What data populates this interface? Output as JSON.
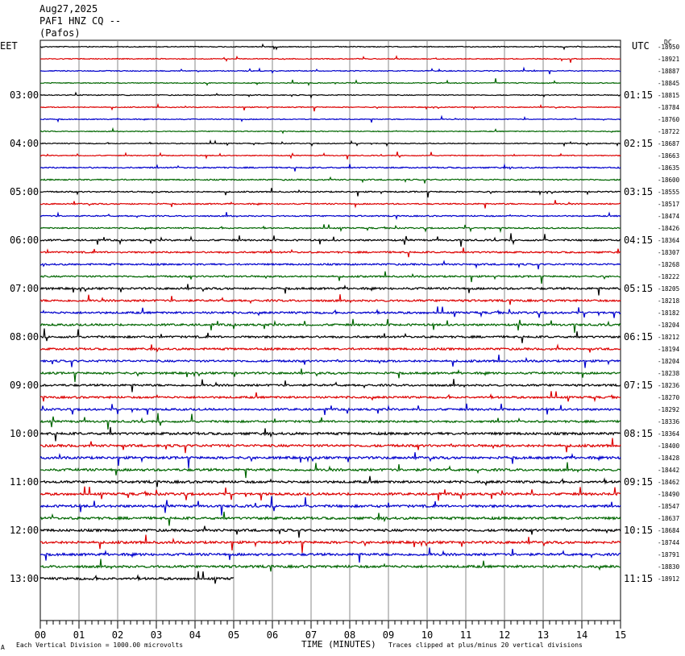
{
  "header": {
    "date": "Aug27,2025",
    "station": "PAF1 HNZ CQ --",
    "location": "(Pafos)"
  },
  "left_timezone": "EET",
  "right_timezone": "UTC",
  "top_right_tag": "DC",
  "footer": {
    "vertical_division": "Each Vertical Division = 1000.00 microvolts",
    "xlabel": "TIME (MINUTES)",
    "clip_note": "Traces clipped at plus/minus 20 vertical divisions",
    "corner_mark": "A"
  },
  "colors": {
    "trace_cycle": [
      "#000000",
      "#dd0000",
      "#0000cc",
      "#006600"
    ],
    "grid": "#888888"
  },
  "chart_data": {
    "type": "line",
    "title": "",
    "xlabel": "TIME (MINUTES)",
    "ylabel": "",
    "xlim": [
      0,
      15
    ],
    "x_ticks": [
      "00",
      "01",
      "02",
      "03",
      "04",
      "05",
      "06",
      "07",
      "08",
      "09",
      "10",
      "11",
      "12",
      "13",
      "14",
      "15"
    ],
    "left_hour_labels": [
      "03:00",
      "04:00",
      "05:00",
      "06:00",
      "07:00",
      "08:00",
      "09:00",
      "10:00",
      "11:00",
      "12:00",
      "13:00"
    ],
    "right_hour_labels": [
      "01:15",
      "02:15",
      "03:15",
      "04:15",
      "05:15",
      "06:15",
      "07:15",
      "08:15",
      "09:15",
      "10:15",
      "11:15"
    ],
    "trace_offsets": [
      -18950,
      -18921,
      -18887,
      -18845,
      -18815,
      -18784,
      -18760,
      -18722,
      -18687,
      -18663,
      -18635,
      -18600,
      -18555,
      -18517,
      -18474,
      -18426,
      -18364,
      -18307,
      -18268,
      -18222,
      -18205,
      -18218,
      -18182,
      -18204,
      -18212,
      -18194,
      -18204,
      -18238,
      -18236,
      -18270,
      -18292,
      -18336,
      -18364,
      -18400,
      -18428,
      -18442,
      -18462,
      -18490,
      -18547,
      -18637,
      -18684,
      -18744,
      -18791,
      -18830,
      -18912
    ],
    "trace_amplitude_level": [
      1,
      1,
      1,
      1,
      1,
      1,
      1,
      1,
      1,
      1,
      2,
      2,
      2,
      2,
      2,
      2,
      3,
      3,
      3,
      3,
      4,
      4,
      4,
      4,
      4,
      4,
      4,
      4,
      4,
      4,
      4,
      4,
      5,
      5,
      5,
      5,
      5,
      5,
      5,
      5,
      5,
      5,
      5,
      5,
      5
    ],
    "last_trace_end_minute": 5.0
  }
}
